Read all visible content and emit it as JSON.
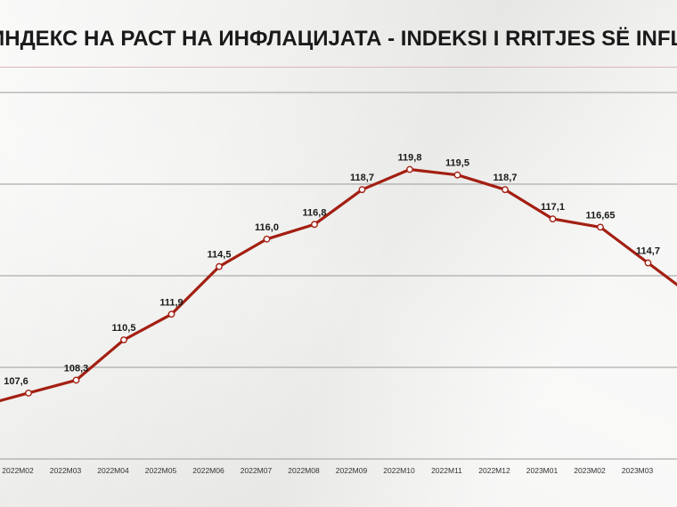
{
  "title": "ИНДЕКС НА РАСТ НА ИНФЛАЦИЈАТА - INDEKSI I RRITJES SË INFLACIONIT",
  "colors": {
    "line": "#a31f12",
    "grid": "#9a9a9a",
    "accent_rule": "#d9b8b8",
    "marker_fill": "#ffffff"
  },
  "chart_data": {
    "type": "line",
    "title": "ИНДЕКС НА РАСТ НА ИНФЛАЦИЈАТА - INDEKSI I RRITJES SË INFLACIONIT",
    "xlabel": "",
    "ylabel": "",
    "categories": [
      "2022M02",
      "2022M03",
      "2022M04",
      "2022M05",
      "2022M06",
      "2022M07",
      "2022M08",
      "2022M09",
      "2022M10",
      "2022M11",
      "2022M12",
      "2023M01",
      "2023M02",
      "2023M03"
    ],
    "series": [
      {
        "values": [
          107.6,
          108.3,
          110.5,
          111.9,
          114.5,
          116.0,
          116.8,
          118.7,
          119.8,
          119.5,
          118.7,
          117.1,
          116.65,
          114.7
        ],
        "labels": [
          "107,6",
          "108,3",
          "110,5",
          "111,9",
          "114,5",
          "116,0",
          "116,8",
          "118,7",
          "119,8",
          "119,5",
          "118,7",
          "117,1",
          "116,65",
          "114,7"
        ]
      }
    ],
    "ylim": [
      104,
      124
    ],
    "grid": true,
    "legend": "none"
  }
}
